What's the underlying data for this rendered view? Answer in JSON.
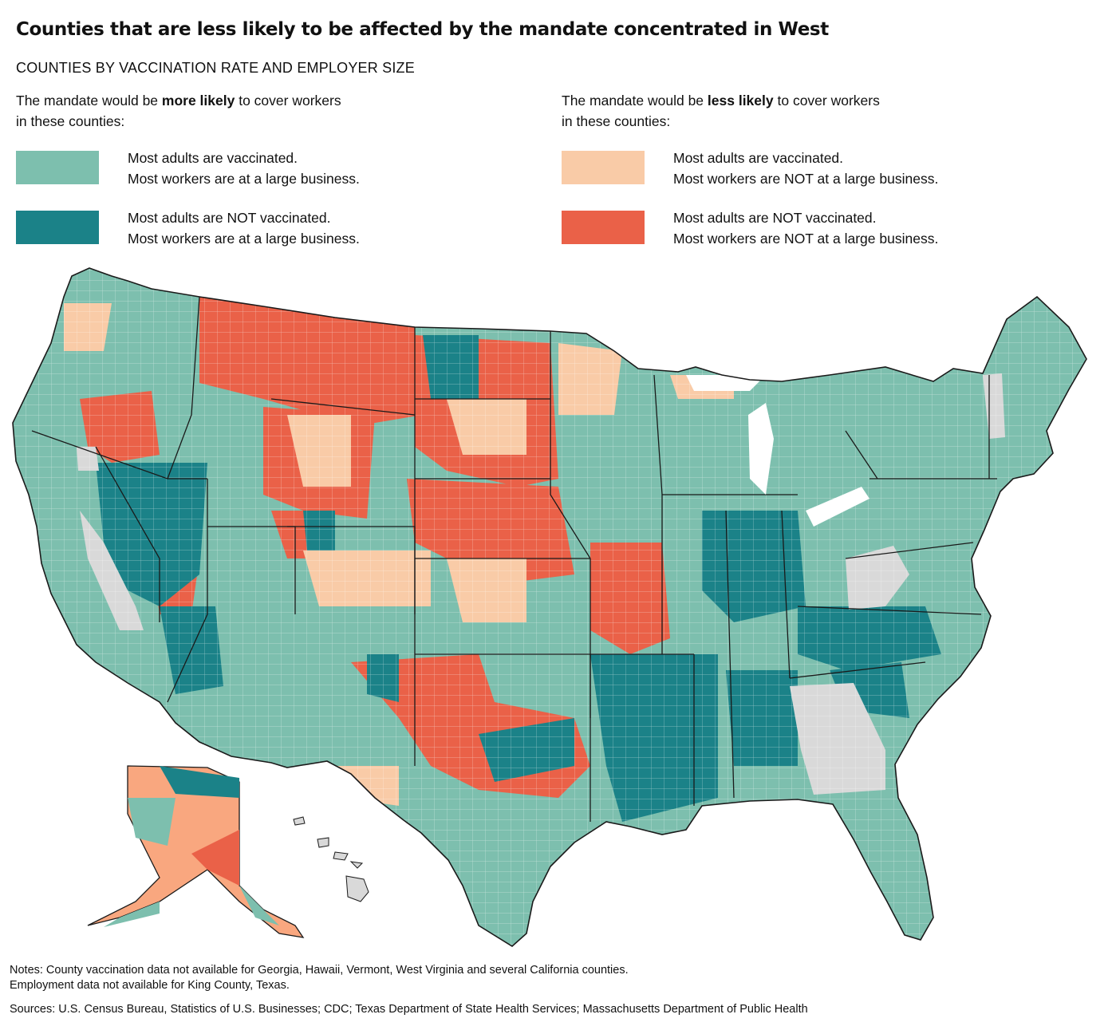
{
  "title": "Counties that are less likely to be affected by the mandate concentrated in West",
  "subtitle": "COUNTIES BY VACCINATION RATE AND EMPLOYER SIZE",
  "legend": {
    "left": {
      "intro_pre": "The mandate would be ",
      "intro_bold": "more likely",
      "intro_post": " to cover workers",
      "intro_line2": "in these counties:",
      "items": [
        {
          "line1": "Most adults are vaccinated.",
          "line2": "Most workers are at a large business.",
          "color": "#7dbfae",
          "category": "vaccinated-large"
        },
        {
          "line1": "Most adults are NOT vaccinated.",
          "line2": "Most workers are at a large business.",
          "color": "#1b8288",
          "category": "unvaccinated-large"
        }
      ]
    },
    "right": {
      "intro_pre": "The mandate would be ",
      "intro_bold": "less likely",
      "intro_post": " to cover workers",
      "intro_line2": "in these counties:",
      "items": [
        {
          "line1": "Most adults are vaccinated.",
          "line2": "Most workers are NOT at a large business.",
          "color": "#f9cba7",
          "category": "vaccinated-small"
        },
        {
          "line1": "Most adults are NOT vaccinated.",
          "line2": "Most workers are NOT at a large business.",
          "color": "#ea6148",
          "category": "unvaccinated-small"
        }
      ]
    }
  },
  "map": {
    "no_data_color": "#d9d9d9",
    "border_color": "#1a1a1a",
    "no_data_states": [
      "Georgia",
      "Hawaii",
      "Vermont",
      "West Virginia"
    ]
  },
  "notes": {
    "line1": "Notes: County vaccination data not available for Georgia, Hawaii, Vermont, West Virginia and several California counties.",
    "line2": "Employment data not available for King County, Texas."
  },
  "sources": "Sources: U.S. Census Bureau, Statistics of U.S. Businesses; CDC; Texas Department of State Health Services; Massachusetts Department of Public Health"
}
